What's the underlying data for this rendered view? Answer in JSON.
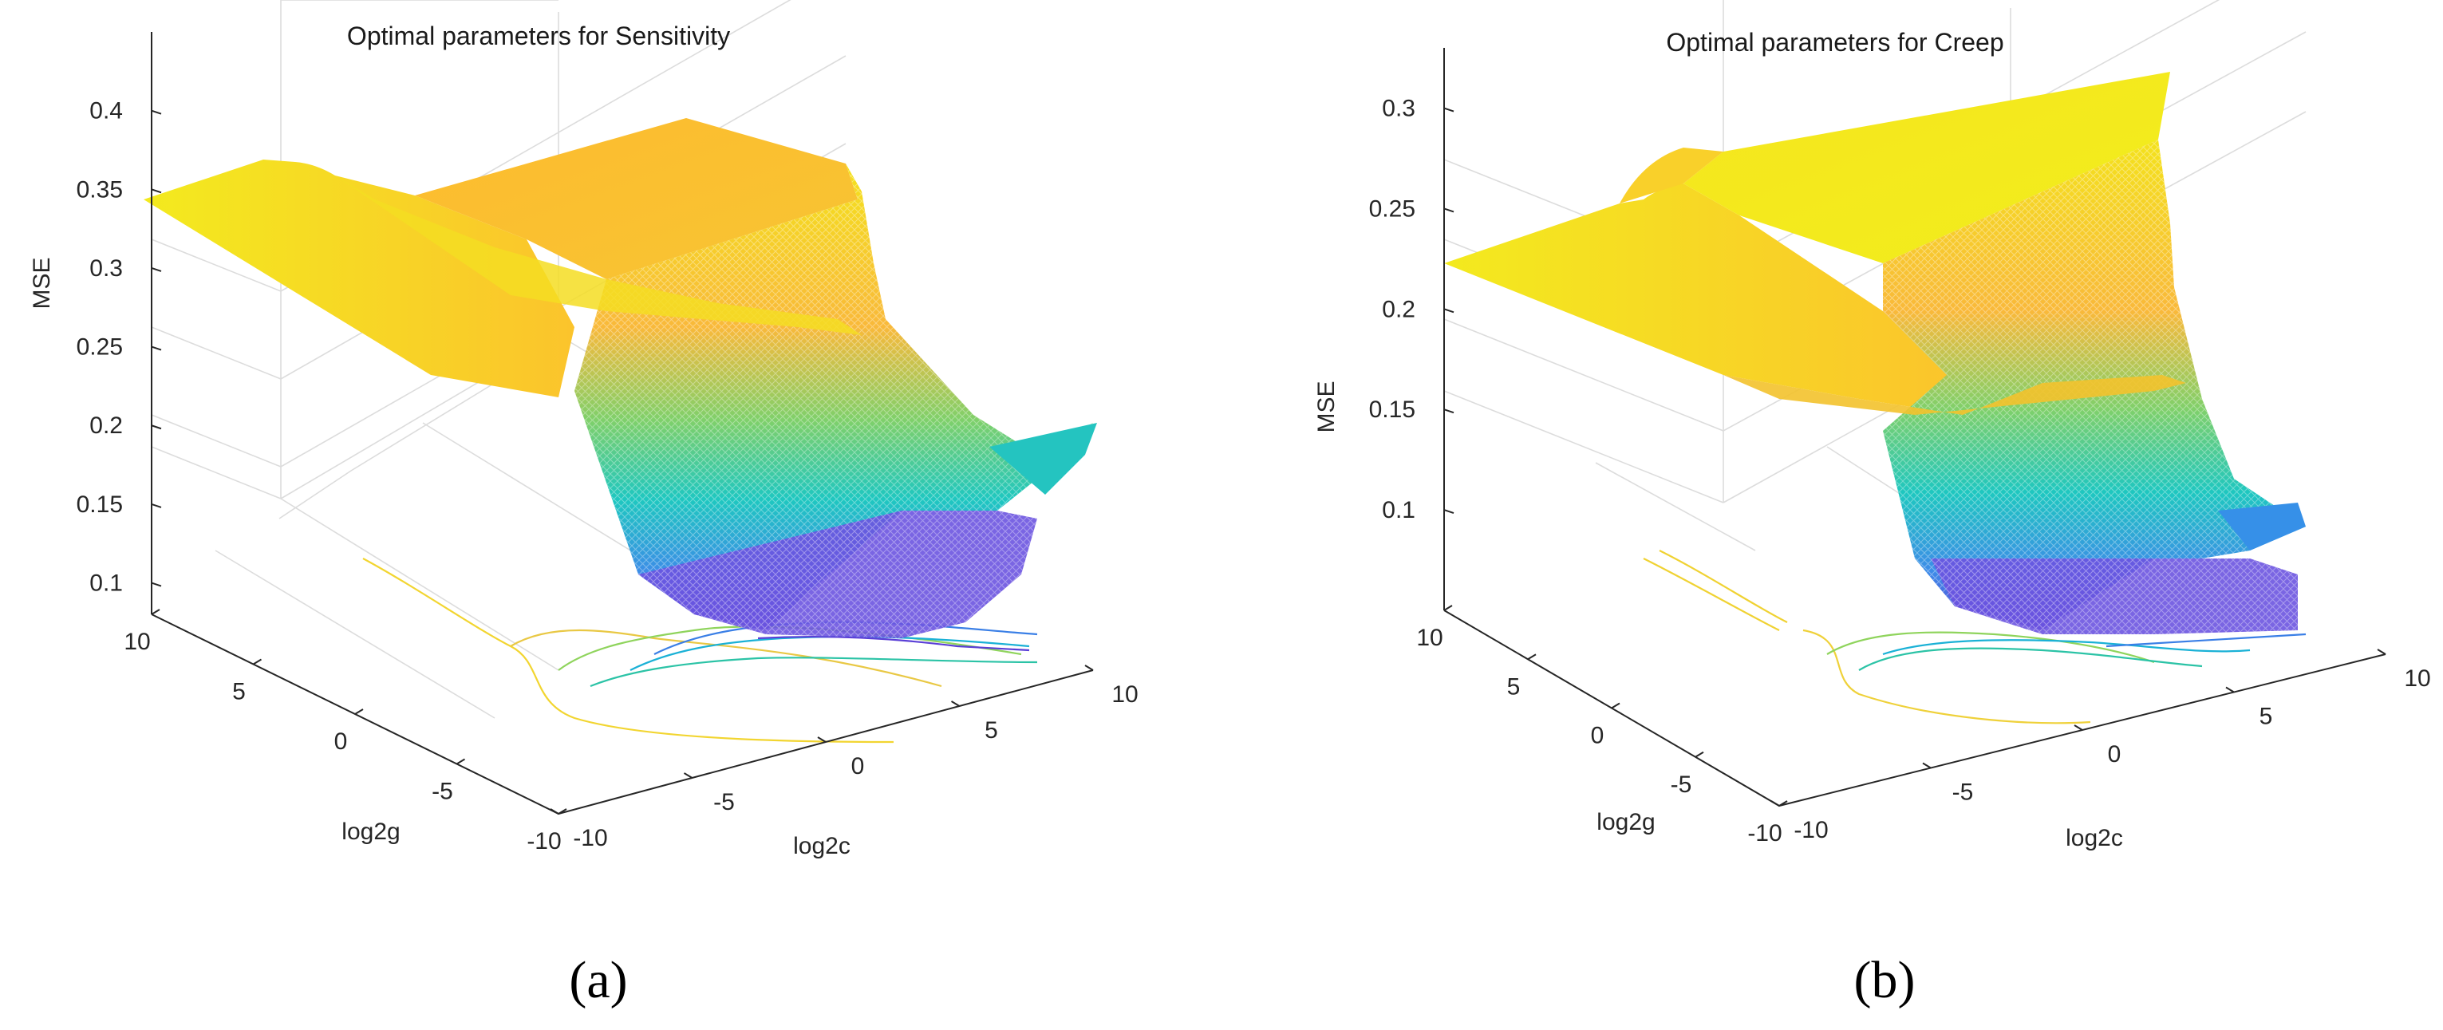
{
  "figure": {
    "panels": [
      {
        "caption": "(a)"
      },
      {
        "caption": "(b)"
      }
    ]
  },
  "chart_data": [
    {
      "type": "surface",
      "title": "Optimal parameters for Sensitivity",
      "xlabel": "log2c",
      "ylabel": "log2g",
      "zlabel": "MSE",
      "xlim": [
        -10,
        10
      ],
      "ylim": [
        -10,
        10
      ],
      "zlim": [
        0.08,
        0.45
      ],
      "xticks": [
        "-10",
        "-5",
        "0",
        "5",
        "10"
      ],
      "yticks": [
        "-10",
        "-5",
        "0",
        "5",
        "10"
      ],
      "zticks": [
        "0.1",
        "0.15",
        "0.2",
        "0.25",
        "0.3",
        "0.35",
        "0.4"
      ],
      "approx_surface_levels": {
        "plateau_high": 0.43,
        "plateau_mid": 0.4,
        "valley_min": 0.1,
        "far_edge": 0.25
      },
      "has_contour_on_floor": true,
      "colormap": "parula"
    },
    {
      "type": "surface",
      "title": "Optimal parameters for Creep",
      "xlabel": "log2c",
      "ylabel": "log2g",
      "zlabel": "MSE",
      "xlim": [
        -10,
        10
      ],
      "ylim": [
        -10,
        10
      ],
      "zlim": [
        0.05,
        0.33
      ],
      "xticks": [
        "-10",
        "-5",
        "0",
        "5",
        "10"
      ],
      "yticks": [
        "-10",
        "-5",
        "0",
        "5",
        "10"
      ],
      "zticks": [
        "0.1",
        "0.15",
        "0.2",
        "0.25",
        "0.3"
      ],
      "approx_surface_levels": {
        "plateau_high": 0.33,
        "plateau_mid": 0.29,
        "valley_min": 0.08,
        "far_edge": 0.12
      },
      "has_contour_on_floor": true,
      "colormap": "parula"
    }
  ]
}
